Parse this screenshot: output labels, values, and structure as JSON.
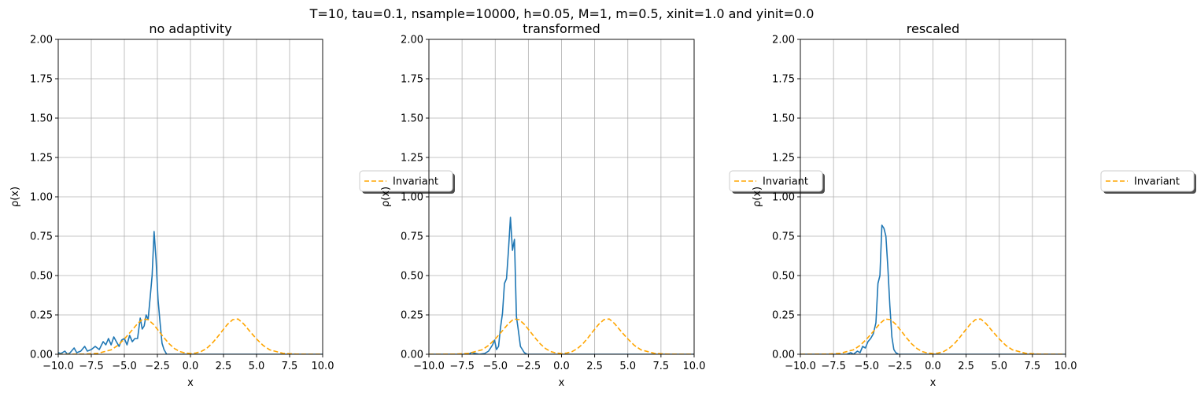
{
  "figure": {
    "title": "T=10, tau=0.1, nsample=10000, h=0.05, M=1, m=0.5, xinit=1.0 and yinit=0.0",
    "colors": {
      "histogram": "#1f77b4",
      "invariant": "#ffa500",
      "grid": "#b0b0b0"
    }
  },
  "chart_data": [
    {
      "type": "line",
      "title": "no adaptivity",
      "xlabel": "x",
      "ylabel": "ρ(x)",
      "xlim": [
        -10,
        10
      ],
      "ylim": [
        0,
        2
      ],
      "grid": true,
      "xticks": [
        "−10.0",
        "−7.5",
        "−5.0",
        "−2.5",
        "0.0",
        "2.5",
        "5.0",
        "7.5",
        "10.0"
      ],
      "yticks": [
        "0.00",
        "0.25",
        "0.50",
        "0.75",
        "1.00",
        "1.25",
        "1.50",
        "1.75",
        "2.00"
      ],
      "legend": {
        "entries": [
          "Invariant"
        ],
        "placement": "outside-right"
      },
      "series": [
        {
          "kind": "histogram",
          "color": "#1f77b4",
          "points": [
            [
              -10,
              0.01
            ],
            [
              -9.8,
              0.005
            ],
            [
              -9.5,
              0.02
            ],
            [
              -9.3,
              0.0
            ],
            [
              -9.1,
              0.01
            ],
            [
              -8.8,
              0.04
            ],
            [
              -8.6,
              0.01
            ],
            [
              -8.3,
              0.02
            ],
            [
              -8.0,
              0.05
            ],
            [
              -7.8,
              0.02
            ],
            [
              -7.5,
              0.03
            ],
            [
              -7.2,
              0.05
            ],
            [
              -6.9,
              0.03
            ],
            [
              -6.6,
              0.08
            ],
            [
              -6.4,
              0.06
            ],
            [
              -6.2,
              0.1
            ],
            [
              -6.0,
              0.06
            ],
            [
              -5.8,
              0.11
            ],
            [
              -5.6,
              0.08
            ],
            [
              -5.4,
              0.05
            ],
            [
              -5.2,
              0.09
            ],
            [
              -5.0,
              0.1
            ],
            [
              -4.8,
              0.06
            ],
            [
              -4.6,
              0.12
            ],
            [
              -4.4,
              0.08
            ],
            [
              -4.2,
              0.1
            ],
            [
              -4.0,
              0.1
            ],
            [
              -3.8,
              0.23
            ],
            [
              -3.65,
              0.16
            ],
            [
              -3.5,
              0.18
            ],
            [
              -3.35,
              0.25
            ],
            [
              -3.2,
              0.22
            ],
            [
              -3.05,
              0.36
            ],
            [
              -2.9,
              0.5
            ],
            [
              -2.75,
              0.78
            ],
            [
              -2.6,
              0.6
            ],
            [
              -2.45,
              0.35
            ],
            [
              -2.3,
              0.2
            ],
            [
              -2.15,
              0.07
            ],
            [
              -2.0,
              0.03
            ],
            [
              -1.8,
              0.0
            ],
            [
              10,
              0.0
            ]
          ]
        },
        {
          "name": "Invariant",
          "kind": "dashed",
          "color": "#ffa500",
          "points": [
            [
              -10,
              0.0
            ],
            [
              -8,
              0.001
            ],
            [
              -7,
              0.006
            ],
            [
              -6,
              0.028
            ],
            [
              -5.5,
              0.056
            ],
            [
              -5,
              0.097
            ],
            [
              -4.5,
              0.145
            ],
            [
              -4,
              0.195
            ],
            [
              -3.6,
              0.224
            ],
            [
              -3.2,
              0.22
            ],
            [
              -2.8,
              0.19
            ],
            [
              -2.4,
              0.148
            ],
            [
              -2,
              0.105
            ],
            [
              -1.6,
              0.066
            ],
            [
              -1.2,
              0.036
            ],
            [
              -0.8,
              0.017
            ],
            [
              -0.4,
              0.008
            ],
            [
              0,
              0.005
            ],
            [
              0.4,
              0.008
            ],
            [
              0.8,
              0.017
            ],
            [
              1.2,
              0.036
            ],
            [
              1.6,
              0.066
            ],
            [
              2,
              0.105
            ],
            [
              2.4,
              0.148
            ],
            [
              2.8,
              0.19
            ],
            [
              3.2,
              0.22
            ],
            [
              3.6,
              0.224
            ],
            [
              4,
              0.195
            ],
            [
              4.5,
              0.145
            ],
            [
              5,
              0.097
            ],
            [
              5.5,
              0.056
            ],
            [
              6,
              0.028
            ],
            [
              7,
              0.006
            ],
            [
              8,
              0.001
            ],
            [
              10,
              0.0
            ]
          ]
        }
      ]
    },
    {
      "type": "line",
      "title": "transformed",
      "xlabel": "x",
      "ylabel": "ρ(x)",
      "xlim": [
        -10,
        10
      ],
      "ylim": [
        0,
        2
      ],
      "grid": true,
      "xticks": [
        "−10.0",
        "−7.5",
        "−5.0",
        "−2.5",
        "0.0",
        "2.5",
        "5.0",
        "7.5",
        "10.0"
      ],
      "yticks": [
        "0.00",
        "0.25",
        "0.50",
        "0.75",
        "1.00",
        "1.25",
        "1.50",
        "1.75",
        "2.00"
      ],
      "legend": {
        "entries": [
          "Invariant"
        ],
        "placement": "outside-right"
      },
      "series": [
        {
          "kind": "histogram",
          "color": "#1f77b4",
          "points": [
            [
              -10,
              0.0
            ],
            [
              -7,
              0.0
            ],
            [
              -6.8,
              0.01
            ],
            [
              -6.5,
              0.005
            ],
            [
              -6.2,
              0.0
            ],
            [
              -5.8,
              0.005
            ],
            [
              -5.5,
              0.02
            ],
            [
              -5.2,
              0.06
            ],
            [
              -5.05,
              0.09
            ],
            [
              -4.9,
              0.03
            ],
            [
              -4.75,
              0.05
            ],
            [
              -4.6,
              0.17
            ],
            [
              -4.45,
              0.26
            ],
            [
              -4.3,
              0.45
            ],
            [
              -4.15,
              0.48
            ],
            [
              -4.0,
              0.66
            ],
            [
              -3.85,
              0.87
            ],
            [
              -3.7,
              0.66
            ],
            [
              -3.55,
              0.73
            ],
            [
              -3.4,
              0.24
            ],
            [
              -3.25,
              0.15
            ],
            [
              -3.1,
              0.05
            ],
            [
              -2.95,
              0.03
            ],
            [
              -2.8,
              0.01
            ],
            [
              -2.6,
              0.0
            ],
            [
              10,
              0.0
            ]
          ]
        },
        {
          "name": "Invariant",
          "kind": "dashed",
          "color": "#ffa500",
          "points": [
            [
              -10,
              0.0
            ],
            [
              -8,
              0.001
            ],
            [
              -7,
              0.006
            ],
            [
              -6,
              0.028
            ],
            [
              -5.5,
              0.056
            ],
            [
              -5,
              0.097
            ],
            [
              -4.5,
              0.145
            ],
            [
              -4,
              0.195
            ],
            [
              -3.6,
              0.224
            ],
            [
              -3.2,
              0.22
            ],
            [
              -2.8,
              0.19
            ],
            [
              -2.4,
              0.148
            ],
            [
              -2,
              0.105
            ],
            [
              -1.6,
              0.066
            ],
            [
              -1.2,
              0.036
            ],
            [
              -0.8,
              0.017
            ],
            [
              -0.4,
              0.008
            ],
            [
              0,
              0.005
            ],
            [
              0.4,
              0.008
            ],
            [
              0.8,
              0.017
            ],
            [
              1.2,
              0.036
            ],
            [
              1.6,
              0.066
            ],
            [
              2,
              0.105
            ],
            [
              2.4,
              0.148
            ],
            [
              2.8,
              0.19
            ],
            [
              3.2,
              0.22
            ],
            [
              3.6,
              0.224
            ],
            [
              4,
              0.195
            ],
            [
              4.5,
              0.145
            ],
            [
              5,
              0.097
            ],
            [
              5.5,
              0.056
            ],
            [
              6,
              0.028
            ],
            [
              7,
              0.006
            ],
            [
              8,
              0.001
            ],
            [
              10,
              0.0
            ]
          ]
        }
      ]
    },
    {
      "type": "line",
      "title": "rescaled",
      "xlabel": "x",
      "ylabel": "ρ(x)",
      "xlim": [
        -10,
        10
      ],
      "ylim": [
        0,
        2
      ],
      "grid": true,
      "xticks": [
        "−10.0",
        "−7.5",
        "−5.0",
        "−2.5",
        "0.0",
        "2.5",
        "5.0",
        "7.5",
        "10.0"
      ],
      "yticks": [
        "0.00",
        "0.25",
        "0.50",
        "0.75",
        "1.00",
        "1.25",
        "1.50",
        "1.75",
        "2.00"
      ],
      "legend": {
        "entries": [
          "Invariant"
        ],
        "placement": "outside-right"
      },
      "series": [
        {
          "kind": "histogram",
          "color": "#1f77b4",
          "points": [
            [
              -10,
              0.0
            ],
            [
              -6.5,
              0.0
            ],
            [
              -6.2,
              0.01
            ],
            [
              -6.0,
              0.0
            ],
            [
              -5.7,
              0.02
            ],
            [
              -5.5,
              0.01
            ],
            [
              -5.3,
              0.05
            ],
            [
              -5.1,
              0.04
            ],
            [
              -4.9,
              0.08
            ],
            [
              -4.7,
              0.1
            ],
            [
              -4.5,
              0.13
            ],
            [
              -4.3,
              0.2
            ],
            [
              -4.15,
              0.45
            ],
            [
              -4.0,
              0.5
            ],
            [
              -3.85,
              0.82
            ],
            [
              -3.7,
              0.8
            ],
            [
              -3.55,
              0.75
            ],
            [
              -3.4,
              0.55
            ],
            [
              -3.25,
              0.31
            ],
            [
              -3.1,
              0.11
            ],
            [
              -2.95,
              0.03
            ],
            [
              -2.8,
              0.01
            ],
            [
              -2.6,
              0.0
            ],
            [
              10,
              0.0
            ]
          ]
        },
        {
          "name": "Invariant",
          "kind": "dashed",
          "color": "#ffa500",
          "points": [
            [
              -10,
              0.0
            ],
            [
              -8,
              0.001
            ],
            [
              -7,
              0.006
            ],
            [
              -6,
              0.028
            ],
            [
              -5.5,
              0.056
            ],
            [
              -5,
              0.097
            ],
            [
              -4.5,
              0.145
            ],
            [
              -4,
              0.195
            ],
            [
              -3.6,
              0.224
            ],
            [
              -3.2,
              0.22
            ],
            [
              -2.8,
              0.19
            ],
            [
              -2.4,
              0.148
            ],
            [
              -2,
              0.105
            ],
            [
              -1.6,
              0.066
            ],
            [
              -1.2,
              0.036
            ],
            [
              -0.8,
              0.017
            ],
            [
              -0.4,
              0.008
            ],
            [
              0,
              0.005
            ],
            [
              0.4,
              0.008
            ],
            [
              0.8,
              0.017
            ],
            [
              1.2,
              0.036
            ],
            [
              1.6,
              0.066
            ],
            [
              2,
              0.105
            ],
            [
              2.4,
              0.148
            ],
            [
              2.8,
              0.19
            ],
            [
              3.2,
              0.22
            ],
            [
              3.6,
              0.224
            ],
            [
              4,
              0.195
            ],
            [
              4.5,
              0.145
            ],
            [
              5,
              0.097
            ],
            [
              5.5,
              0.056
            ],
            [
              6,
              0.028
            ],
            [
              7,
              0.006
            ],
            [
              8,
              0.001
            ],
            [
              10,
              0.0
            ]
          ]
        }
      ]
    }
  ]
}
